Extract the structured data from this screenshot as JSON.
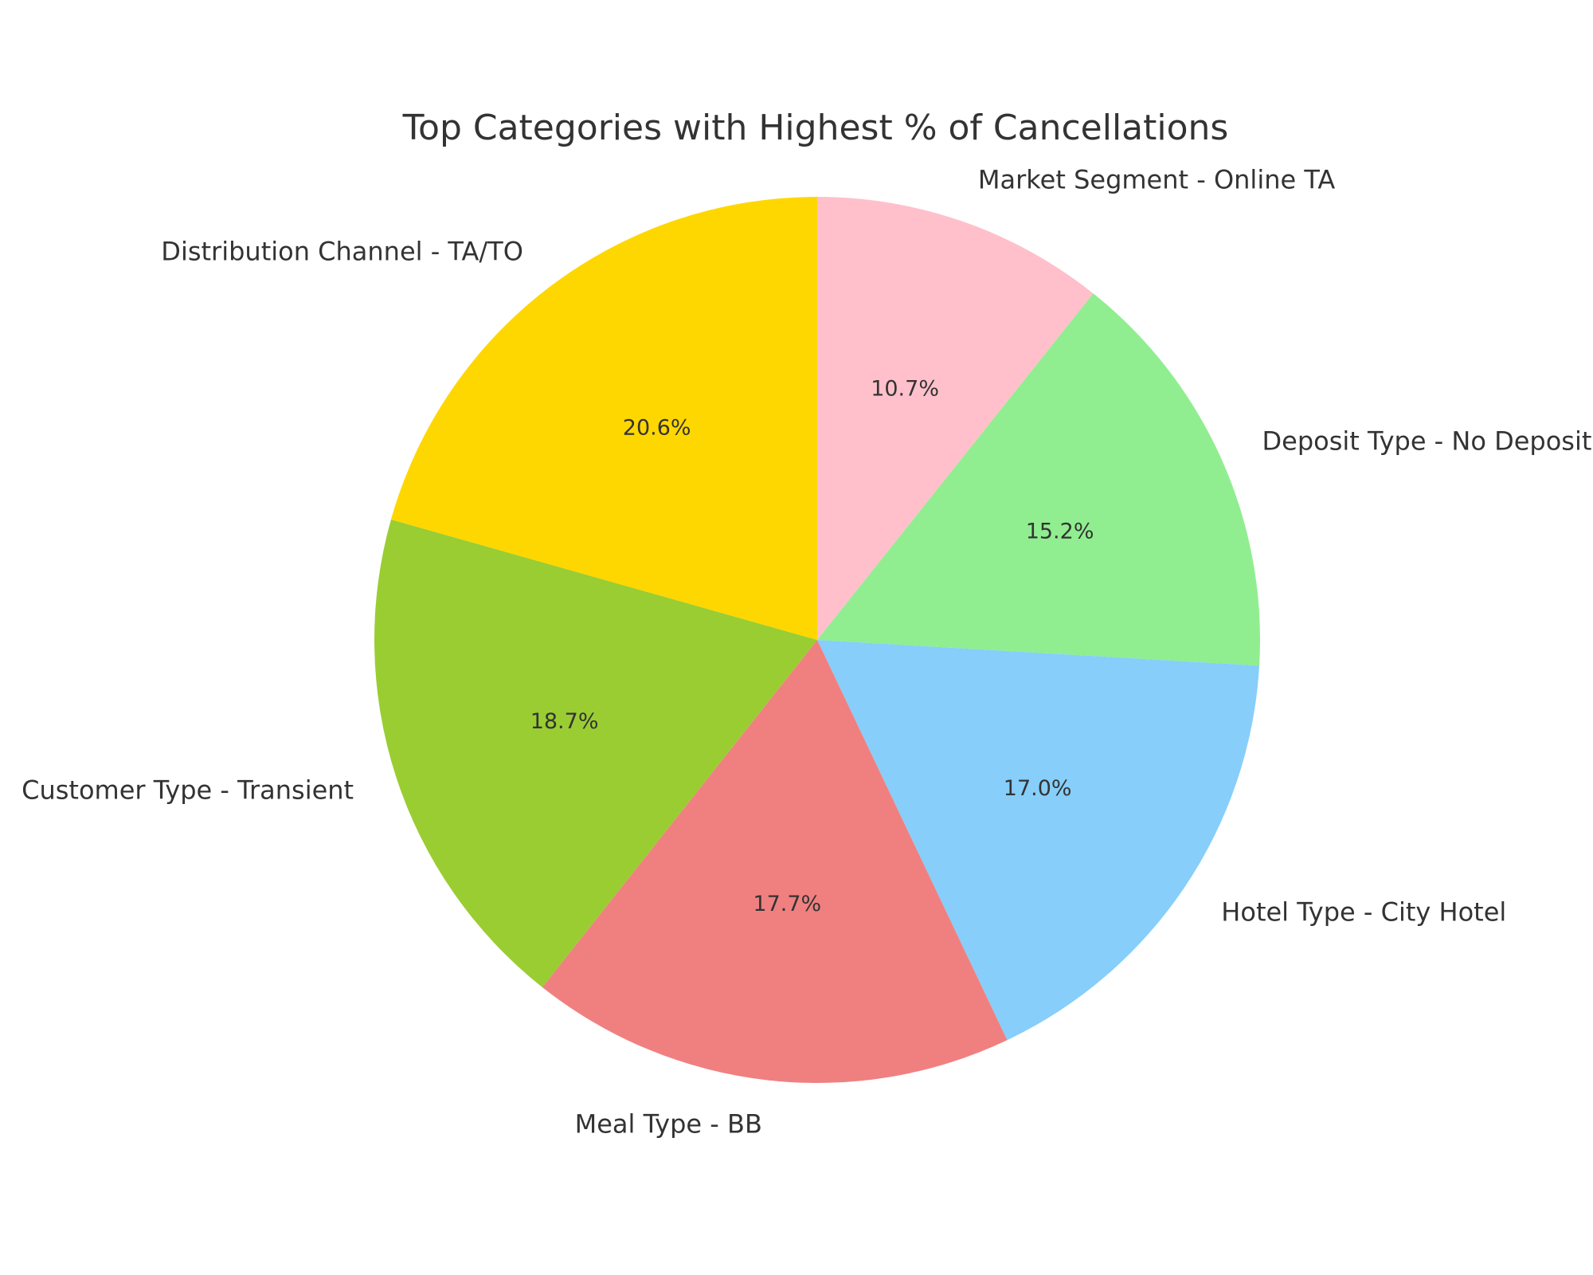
{
  "chart_data": {
    "type": "pie",
    "title": "Top Categories with Highest % of Cancellations",
    "categories": [
      "Market Segment - Online TA",
      "Deposit Type - No Deposit",
      "Hotel Type - City Hotel",
      "Meal Type - BB",
      "Customer Type - Transient",
      "Distribution Channel - TA/TO"
    ],
    "values": [
      10.7,
      15.2,
      17.0,
      17.7,
      18.7,
      20.6
    ],
    "value_labels": [
      "10.7%",
      "15.2%",
      "17.0%",
      "17.7%",
      "18.7%",
      "20.6%"
    ],
    "colors": [
      "#FFC0CB",
      "#90EE90",
      "#87CEFA",
      "#F08080",
      "#9ACD32",
      "#FFD700"
    ],
    "start_angle_deg": 90,
    "direction": "clockwise",
    "legend": "none"
  }
}
